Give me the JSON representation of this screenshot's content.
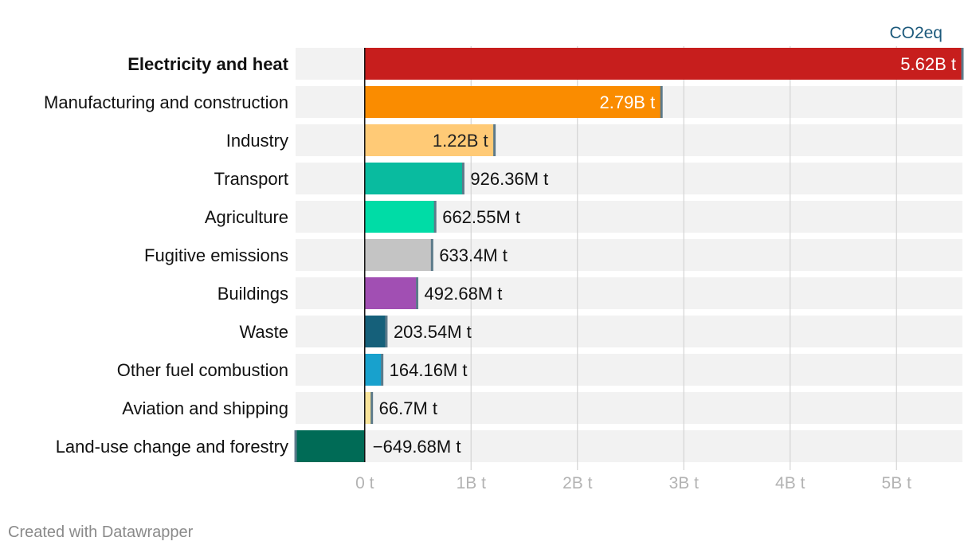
{
  "chart_data": {
    "type": "bar",
    "orientation": "horizontal",
    "unit_label": "CO2eq",
    "categories": [
      "Electricity and heat",
      "Manufacturing and construction",
      "Industry",
      "Transport",
      "Agriculture",
      "Fugitive emissions",
      "Buildings",
      "Waste",
      "Other fuel combustion",
      "Aviation and shipping",
      "Land-use change and forestry"
    ],
    "values": [
      5620000000,
      2790000000,
      1220000000,
      926360000,
      662550000,
      633400000,
      492680000,
      203540000,
      164160000,
      66700000,
      -649680000
    ],
    "value_labels": [
      "5.62B t",
      "2.79B t",
      "1.22B t",
      "926.36M t",
      "662.55M t",
      "633.4M t",
      "492.68M t",
      "203.54M t",
      "164.16M t",
      "66.7M t",
      "−649.68M t"
    ],
    "colors": [
      "#c71e1d",
      "#fa8c00",
      "#ffca76",
      "#09bb9f",
      "#00dca6",
      "#c4c4c4",
      "#a14fb3",
      "#15607a",
      "#18a1cd",
      "#f8e49a",
      "#006b56"
    ],
    "highlighted": [
      "Electricity and heat"
    ],
    "xlim": [
      -650000000,
      5620000000
    ],
    "x_ticks": [
      0,
      1000000000,
      2000000000,
      3000000000,
      4000000000,
      5000000000
    ],
    "x_tick_labels": [
      "0 t",
      "1B t",
      "2B t",
      "3B t",
      "4B t",
      "5B t"
    ],
    "xlabel": "",
    "ylabel": "",
    "grid": true
  },
  "footer": {
    "credit": "Created with Datawrapper"
  }
}
